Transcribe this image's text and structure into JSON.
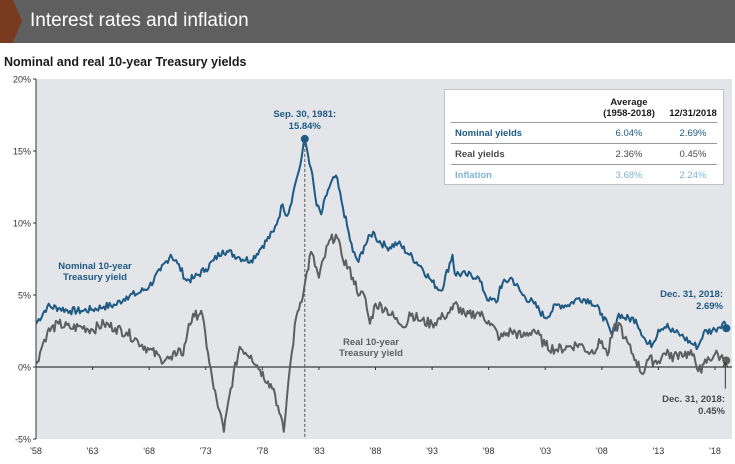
{
  "header": {
    "title": "Interest rates and inflation"
  },
  "colors": {
    "nominal": "#1e5a84",
    "real": "#5e5e5e",
    "inflation": "#7fb3d5",
    "banner": "#5f5f5f",
    "accent": "#7a3a1f",
    "plot_bg": "#e3e5e9"
  },
  "table": {
    "col_headers": [
      "Average\n(1958-2018)",
      "12/31/2018"
    ],
    "rows": [
      {
        "label": "Nominal yields",
        "average": "6.04%",
        "current": "2.69%"
      },
      {
        "label": "Real yields",
        "average": "2.36%",
        "current": "0.45%"
      },
      {
        "label": "Inflation",
        "average": "3.68%",
        "current": "2.24%"
      }
    ]
  },
  "chart_data": {
    "type": "line",
    "title": "Nominal and real 10-year Treasury yields",
    "xlim": [
      1958,
      2019.5
    ],
    "ylim": [
      -5,
      20
    ],
    "x_ticks": [
      "'58",
      "'63",
      "'68",
      "'73",
      "'78",
      "'83",
      "'88",
      "'93",
      "'98",
      "'03",
      "'08",
      "'13",
      "'18"
    ],
    "x_tick_values": [
      1958,
      1963,
      1968,
      1973,
      1978,
      1983,
      1988,
      1993,
      1998,
      2003,
      2008,
      2013,
      2018
    ],
    "y_ticks": [
      "-5%",
      "0%",
      "5%",
      "10%",
      "15%",
      "20%"
    ],
    "y_tick_values": [
      -5,
      0,
      5,
      10,
      15,
      20
    ],
    "series": [
      {
        "name": "Nominal 10-Year Treasury yield",
        "label": "Nominal 10-year\nTreasury yield",
        "x": [
          1958,
          1959,
          1960,
          1961,
          1962,
          1963,
          1964,
          1965,
          1966,
          1967,
          1968,
          1969,
          1969.9,
          1970.5,
          1971.3,
          1972,
          1973,
          1973.7,
          1974.5,
          1975,
          1976,
          1977,
          1978,
          1979,
          1979.8,
          1980.2,
          1980.7,
          1981.0,
          1981.4,
          1981.75,
          1982.3,
          1982.8,
          1983.2,
          1983.8,
          1984.5,
          1985,
          1986,
          1986.5,
          1987,
          1987.8,
          1988,
          1989,
          1990,
          1991,
          1992,
          1993,
          1993.8,
          1994.8,
          1995,
          1996,
          1997,
          1998,
          1998.8,
          1999,
          2000,
          2001,
          2002,
          2003,
          2004,
          2005,
          2006,
          2007,
          2008,
          2008.9,
          2009.5,
          2010,
          2011,
          2012,
          2012.5,
          2013,
          2013.8,
          2014,
          2015,
          2016,
          2016.5,
          2017,
          2018,
          2018.8,
          2019
        ],
        "y": [
          3.0,
          4.2,
          4.1,
          3.9,
          3.9,
          4.0,
          4.2,
          4.3,
          4.9,
          5.1,
          5.6,
          6.7,
          7.8,
          7.2,
          6.0,
          6.2,
          6.8,
          7.4,
          8.1,
          8.0,
          7.6,
          7.4,
          8.4,
          9.4,
          11.3,
          10.5,
          12.0,
          13.0,
          14.2,
          15.84,
          13.8,
          11.2,
          10.6,
          12.3,
          13.3,
          11.5,
          8.0,
          7.3,
          8.4,
          9.4,
          9.0,
          8.3,
          8.6,
          7.8,
          7.0,
          5.9,
          5.3,
          7.8,
          6.5,
          6.4,
          6.3,
          4.6,
          4.6,
          5.6,
          6.2,
          5.0,
          4.4,
          3.4,
          4.3,
          4.3,
          4.8,
          4.6,
          3.7,
          2.2,
          3.7,
          3.4,
          3.3,
          1.6,
          1.6,
          2.6,
          3.0,
          2.6,
          2.2,
          1.6,
          1.4,
          2.4,
          2.6,
          3.15,
          2.69
        ]
      },
      {
        "name": "Real 10-Year Treasury yield",
        "label": "Real 10-year\nTreasury yield",
        "x": [
          1958,
          1958.6,
          1959,
          1960,
          1961,
          1962,
          1963,
          1964,
          1965,
          1966,
          1967,
          1968,
          1969,
          1970,
          1970.6,
          1971,
          1971.5,
          1972,
          1972.6,
          1973.2,
          1973.7,
          1974.2,
          1974.6,
          1975.2,
          1976,
          1977,
          1977.8,
          1978.5,
          1979,
          1979.5,
          1979.9,
          1980.3,
          1980.6,
          1981,
          1981.7,
          1982.3,
          1983,
          1983.8,
          1984.5,
          1985,
          1986,
          1986.6,
          1987,
          1987.5,
          1988,
          1989,
          1990,
          1990.8,
          1991,
          1992,
          1993,
          1994,
          1994.8,
          1995,
          1996,
          1997,
          1998,
          1999,
          2000,
          2001,
          2002,
          2003,
          2004,
          2005,
          2006,
          2007,
          2008,
          2008.5,
          2009,
          2009.6,
          2010,
          2011,
          2011.6,
          2012,
          2013,
          2013.8,
          2014,
          2015,
          2016,
          2016.8,
          2017,
          2018,
          2018.5,
          2019
        ],
        "y": [
          0.2,
          1.6,
          2.4,
          3.0,
          2.7,
          2.8,
          2.6,
          3.0,
          2.7,
          2.4,
          1.8,
          1.2,
          0.6,
          0.5,
          1.3,
          0.8,
          3.0,
          3.5,
          3.9,
          1.0,
          -1.5,
          -3.0,
          -4.5,
          -1.5,
          1.4,
          0.8,
          -0.2,
          -1.0,
          -1.5,
          -3.2,
          -4.5,
          -1.0,
          1.0,
          3.5,
          5.5,
          8.0,
          6.2,
          8.5,
          9.2,
          7.8,
          6.2,
          5.0,
          5.0,
          3.0,
          4.4,
          4.0,
          3.1,
          3.0,
          3.8,
          3.2,
          3.0,
          3.5,
          4.0,
          4.4,
          3.5,
          3.8,
          3.2,
          2.0,
          2.5,
          2.1,
          2.6,
          1.5,
          1.2,
          1.4,
          1.6,
          1.0,
          1.8,
          0.8,
          2.5,
          3.0,
          2.0,
          0.5,
          -0.5,
          0.5,
          0.4,
          1.2,
          0.6,
          1.0,
          0.8,
          -0.4,
          0.2,
          0.9,
          0.7,
          0.45
        ]
      }
    ],
    "markers": [
      {
        "x": 1981.75,
        "y": 15.84,
        "series": "nominal",
        "label": "Sep. 30, 1981:\n15.84%"
      },
      {
        "x": 2019,
        "y": 2.69,
        "series": "nominal",
        "label": "Dec. 31, 2018:\n2.69%"
      },
      {
        "x": 2019,
        "y": 0.45,
        "series": "real",
        "label": "Dec. 31, 2018:\n0.45%"
      }
    ],
    "grid": false,
    "legend": "none"
  }
}
